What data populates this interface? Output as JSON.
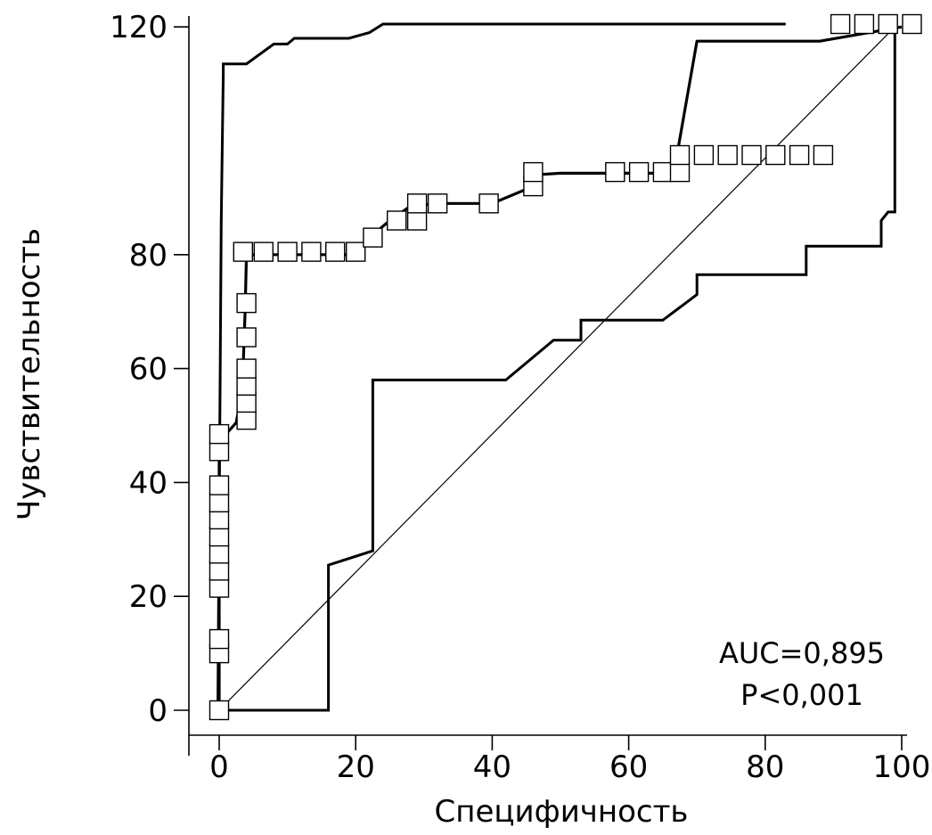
{
  "chart_data": {
    "type": "line",
    "title": "",
    "xlabel": "Специфичность",
    "ylabel": "Чувствительность",
    "xlim": [
      0,
      100
    ],
    "ylim": [
      0,
      120
    ],
    "xticks": [
      0,
      20,
      40,
      60,
      80,
      100
    ],
    "yticks": [
      0,
      20,
      40,
      60,
      80,
      120
    ],
    "xtick_labels": [
      "0",
      "20",
      "40",
      "60",
      "80",
      "100"
    ],
    "ytick_labels": [
      "0",
      "20",
      "40",
      "60",
      "80",
      "120"
    ],
    "grid": false,
    "series": [
      {
        "role": "roc",
        "style": "thick line with square markers",
        "x": [
          0,
          0,
          0,
          0,
          0.3,
          1,
          2.5,
          3.2,
          3.5,
          3.8,
          4,
          20,
          22,
          25,
          28,
          32,
          38,
          40,
          46,
          46,
          50,
          57,
          65,
          67,
          70,
          88,
          100
        ],
        "y": [
          0,
          10,
          25,
          45,
          47,
          48.5,
          50.5,
          55,
          60,
          70,
          80,
          80,
          83,
          86,
          88.5,
          89,
          89,
          89,
          92,
          94,
          94.3,
          94.3,
          94.3,
          97,
          117.5,
          117.5,
          120
        ]
      },
      {
        "role": "upper_confidence_bound",
        "style": "thick line",
        "x": [
          -0.2,
          0.3,
          0.6,
          0.6,
          4,
          8,
          10,
          11,
          11,
          19,
          22,
          24,
          83
        ],
        "y": [
          0,
          86,
          112,
          113.5,
          113.5,
          117,
          117,
          118,
          118,
          118,
          119,
          120.5,
          120.5
        ]
      },
      {
        "role": "lower_confidence_bound",
        "style": "thick line",
        "x": [
          0,
          16,
          16,
          22.5,
          22.5,
          42,
          49,
          53,
          53,
          65,
          70,
          70,
          86,
          86,
          97,
          97,
          98,
          99,
          99
        ],
        "y": [
          0,
          0,
          25.5,
          28,
          58,
          58,
          65,
          65,
          68.5,
          68.5,
          73,
          76.5,
          76.5,
          81.5,
          81.5,
          86,
          87.5,
          87.5,
          120
        ]
      },
      {
        "role": "reference_diagonal",
        "style": "thin line",
        "x": [
          0,
          99
        ],
        "y": [
          0,
          120
        ]
      }
    ],
    "markers": {
      "shape": "square",
      "points": [
        [
          0,
          0
        ],
        [
          0,
          10
        ],
        [
          0,
          12.5
        ],
        [
          0,
          21.5
        ],
        [
          0,
          24.5
        ],
        [
          0,
          27.5
        ],
        [
          0,
          30.5
        ],
        [
          0,
          33.5
        ],
        [
          0,
          36.5
        ],
        [
          0,
          39.5
        ],
        [
          0,
          45.5
        ],
        [
          0,
          48.5
        ],
        [
          4,
          51
        ],
        [
          4,
          54
        ],
        [
          4,
          57
        ],
        [
          4,
          60
        ],
        [
          4,
          65.5
        ],
        [
          4,
          71.5
        ],
        [
          3.5,
          80.5
        ],
        [
          6.5,
          80.5
        ],
        [
          10,
          80.5
        ],
        [
          13.5,
          80.5
        ],
        [
          17,
          80.5
        ],
        [
          20,
          80.5
        ],
        [
          22.5,
          83
        ],
        [
          26,
          86
        ],
        [
          29,
          86
        ],
        [
          29,
          89
        ],
        [
          32,
          89
        ],
        [
          39.5,
          89
        ],
        [
          46,
          92
        ],
        [
          46,
          94.5
        ],
        [
          58,
          94.5
        ],
        [
          61.5,
          94.5
        ],
        [
          65,
          94.5
        ],
        [
          67.5,
          94.5
        ],
        [
          67.5,
          97.5
        ],
        [
          71,
          97.5
        ],
        [
          74.5,
          97.5
        ],
        [
          78,
          97.5
        ],
        [
          81.5,
          97.5
        ],
        [
          85,
          97.5
        ],
        [
          88.5,
          97.5
        ],
        [
          91,
          120.5
        ],
        [
          94.5,
          120.5
        ],
        [
          98,
          120.5
        ],
        [
          101.5,
          120.5
        ]
      ]
    },
    "annotations": [
      {
        "text": "AUC=0,895"
      },
      {
        "text": "P<0,001"
      }
    ]
  }
}
